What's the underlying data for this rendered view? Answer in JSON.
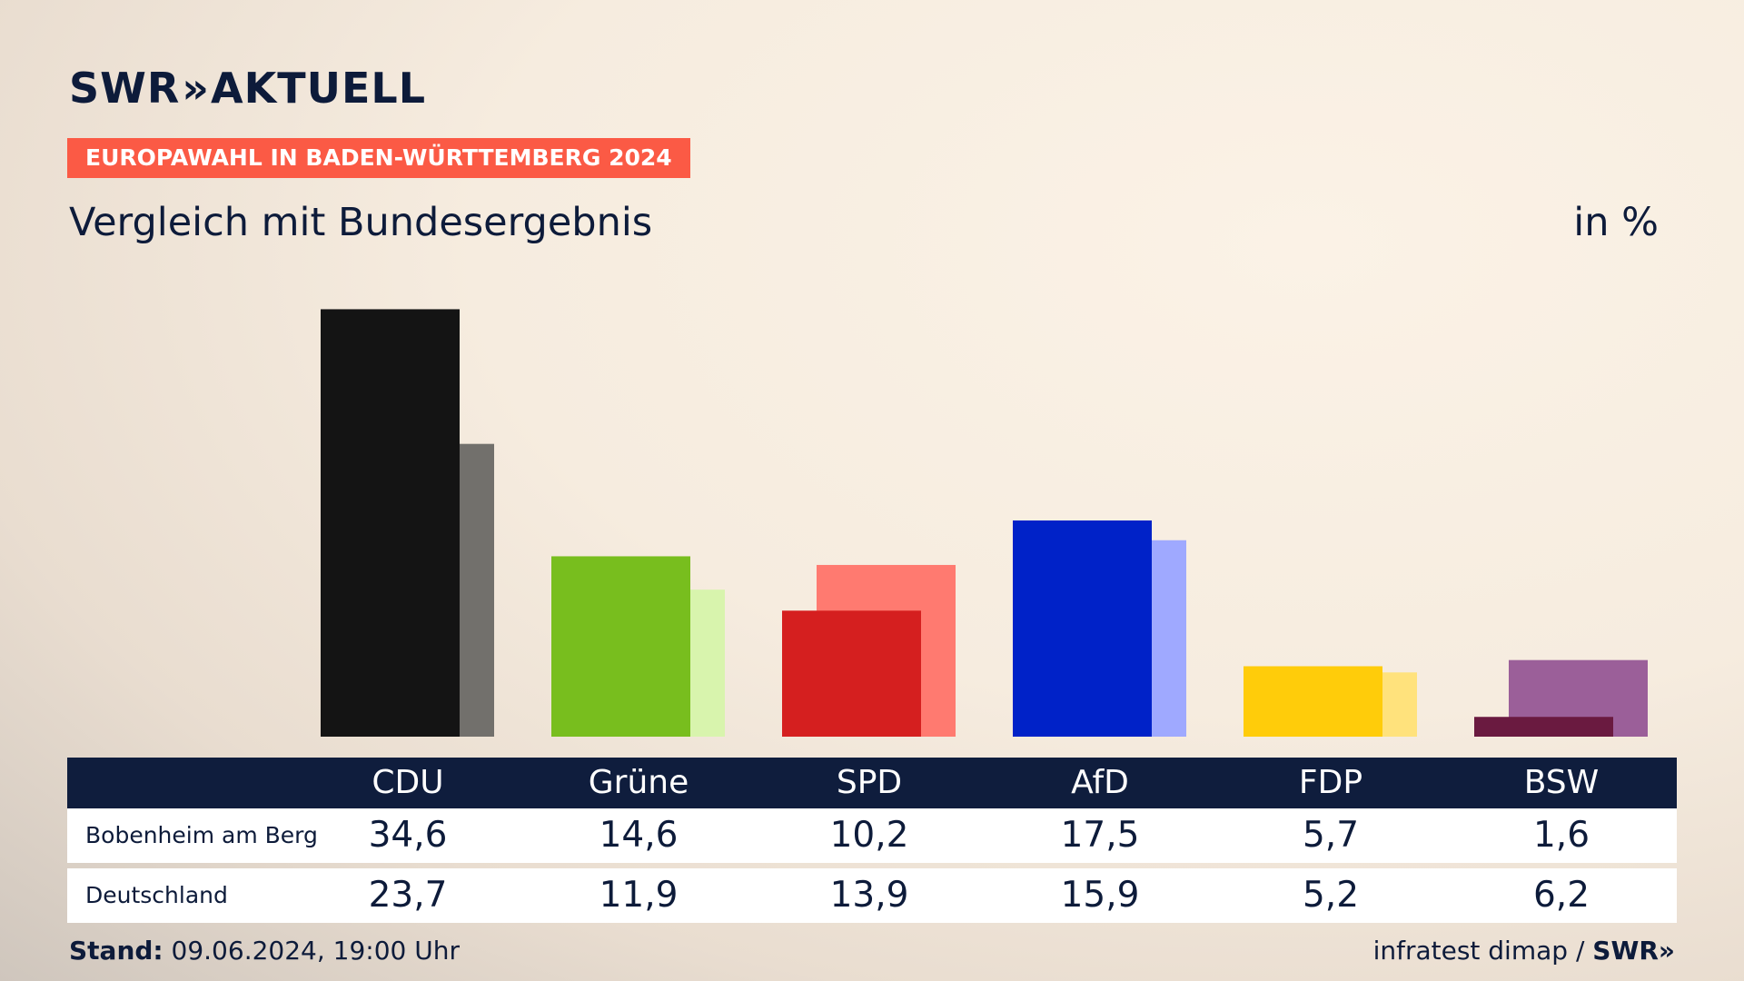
{
  "brand": {
    "name": "SWR",
    "chevrons": "»",
    "product": "AKTUELL"
  },
  "badge": "EUROPAWAHL IN BADEN-WÜRTTEMBERG 2024",
  "title": "Vergleich mit Bundesergebnis",
  "unit": "in %",
  "colors": {
    "accent": "#fb5a45",
    "header_bg": "#0f1d3d",
    "text": "#0d1b3a"
  },
  "chart_data": {
    "type": "bar",
    "categories": [
      "CDU",
      "Grüne",
      "SPD",
      "AfD",
      "FDP",
      "BSW"
    ],
    "series": [
      {
        "name": "Bobenheim am Berg",
        "values": [
          34.6,
          14.6,
          10.2,
          17.5,
          5.7,
          1.6
        ],
        "colors": [
          "#141414",
          "#78be1e",
          "#d51f1f",
          "#0022c8",
          "#ffcc0a",
          "#6a1a40"
        ]
      },
      {
        "name": "Deutschland",
        "values": [
          23.7,
          11.9,
          13.9,
          15.9,
          5.2,
          6.2
        ],
        "colors": [
          "#72706c",
          "#d8f4ad",
          "#ff7a70",
          "#9fa9ff",
          "#ffe27c",
          "#9b5f99"
        ]
      }
    ],
    "ylim": [
      0,
      35
    ],
    "grid": false
  },
  "table": {
    "rows": [
      {
        "label": "Bobenheim am Berg",
        "values": [
          "34,6",
          "14,6",
          "10,2",
          "17,5",
          "5,7",
          "1,6"
        ]
      },
      {
        "label": "Deutschland",
        "values": [
          "23,7",
          "11,9",
          "13,9",
          "15,9",
          "5,2",
          "6,2"
        ]
      }
    ]
  },
  "footer": {
    "stand_label": "Stand:",
    "stand_value": "09.06.2024, 19:00 Uhr",
    "source": "infratest dimap /",
    "source_brand": "SWR»"
  }
}
